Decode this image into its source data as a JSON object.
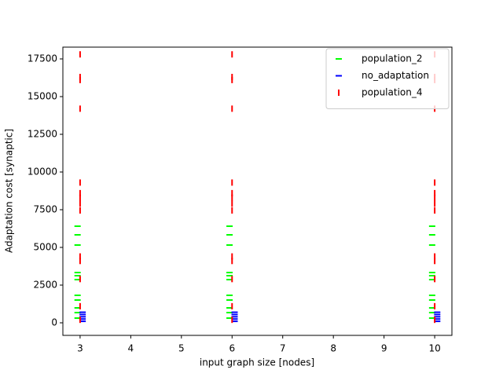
{
  "chart_data": {
    "type": "scatter",
    "xlabel": "input graph size [nodes]",
    "ylabel": "Adaptation cost [synaptic]",
    "xlim": [
      2.66,
      10.34
    ],
    "ylim": [
      -833,
      18281
    ],
    "xticks": [
      3,
      4,
      5,
      6,
      7,
      8,
      9,
      10
    ],
    "yticks": [
      0,
      2500,
      5000,
      7500,
      10000,
      12500,
      15000,
      17500
    ],
    "legend": "upper right",
    "series": [
      {
        "name": "population_2",
        "color": "#00ff00",
        "marker": "_",
        "x": [
          2.95,
          2.95,
          2.95,
          2.95,
          2.95,
          2.95,
          2.95,
          2.95,
          2.95,
          2.95,
          2.95,
          5.95,
          5.95,
          5.95,
          5.95,
          5.95,
          5.95,
          5.95,
          5.95,
          5.95,
          5.95,
          5.95,
          9.95,
          9.95,
          9.95,
          9.95,
          9.95,
          9.95,
          9.95,
          9.95,
          9.95,
          9.95,
          9.95
        ],
        "values": [
          6406,
          5833,
          5156,
          3333,
          3125,
          2865,
          1823,
          1510,
          990,
          677,
          313,
          6406,
          5833,
          5156,
          3333,
          3125,
          2865,
          1823,
          1510,
          990,
          677,
          313,
          6406,
          5833,
          5156,
          3333,
          3125,
          2865,
          1823,
          1510,
          990,
          677,
          313
        ]
      },
      {
        "name": "no_adaptation",
        "color": "#0000ff",
        "marker": "_",
        "x": [
          3.05,
          3.05,
          3.05,
          3.05,
          3.05,
          6.05,
          6.05,
          6.05,
          6.05,
          6.05,
          10.05,
          10.05,
          10.05,
          10.05,
          10.05
        ],
        "values": [
          100,
          250,
          400,
          550,
          700,
          100,
          250,
          400,
          550,
          700,
          100,
          250,
          400,
          550,
          700
        ]
      },
      {
        "name": "population_4",
        "color": "#ff0000",
        "marker": "|",
        "x": [
          3,
          3,
          3,
          3,
          3,
          3,
          3,
          3,
          3,
          3,
          3,
          3,
          3,
          3,
          6,
          6,
          6,
          6,
          6,
          6,
          6,
          6,
          6,
          6,
          6,
          6,
          6,
          6,
          10,
          10,
          10,
          10,
          10,
          10,
          10,
          10,
          10,
          10,
          10,
          10,
          10,
          10
        ],
        "values": [
          17800,
          16300,
          16100,
          14200,
          9300,
          8600,
          8300,
          7900,
          7450,
          4400,
          4100,
          2900,
          1100,
          200,
          17800,
          16300,
          16100,
          14200,
          9300,
          8600,
          8300,
          7900,
          7450,
          4400,
          4100,
          2900,
          1100,
          200,
          17800,
          16300,
          16100,
          14200,
          9300,
          8600,
          8300,
          7900,
          7450,
          4400,
          4100,
          2900,
          1100,
          200
        ]
      }
    ]
  }
}
